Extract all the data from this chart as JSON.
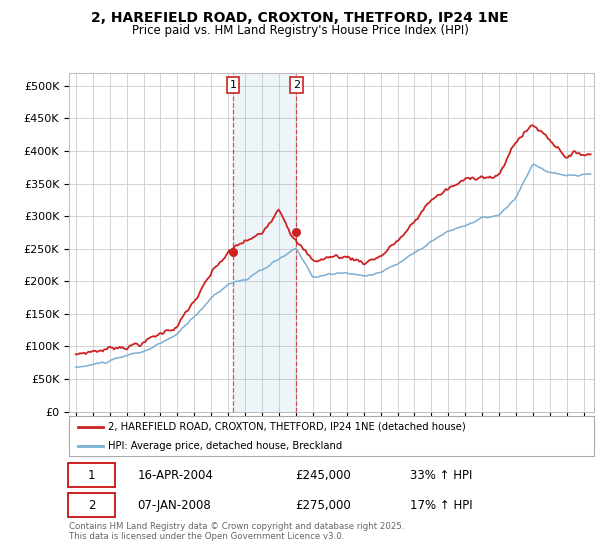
{
  "title": "2, HAREFIELD ROAD, CROXTON, THETFORD, IP24 1NE",
  "subtitle": "Price paid vs. HM Land Registry's House Price Index (HPI)",
  "ylim": [
    0,
    520000
  ],
  "yticks": [
    0,
    50000,
    100000,
    150000,
    200000,
    250000,
    300000,
    350000,
    400000,
    450000,
    500000
  ],
  "ytick_labels": [
    "£0",
    "£50K",
    "£100K",
    "£150K",
    "£200K",
    "£250K",
    "£300K",
    "£350K",
    "£400K",
    "£450K",
    "£500K"
  ],
  "hpi_color": "#7bafd4",
  "price_color": "#cc2222",
  "sale1_date": "16-APR-2004",
  "sale1_price": 245000,
  "sale1_hpi_change": "33% ↑ HPI",
  "sale2_date": "07-JAN-2008",
  "sale2_price": 275000,
  "sale2_hpi_change": "17% ↑ HPI",
  "legend_label1": "2, HAREFIELD ROAD, CROXTON, THETFORD, IP24 1NE (detached house)",
  "legend_label2": "HPI: Average price, detached house, Breckland",
  "footnote": "Contains HM Land Registry data © Crown copyright and database right 2025.\nThis data is licensed under the Open Government Licence v3.0.",
  "background_color": "#ffffff",
  "grid_color": "#cccccc",
  "sale1_x_year": 2004.29,
  "sale2_x_year": 2008.02,
  "xmin": 1994.6,
  "xmax": 2025.6,
  "hpi_base": {
    "1995": 68000,
    "1996": 72000,
    "1997": 77000,
    "1998": 83000,
    "1999": 90000,
    "2000": 100000,
    "2001": 115000,
    "2002": 140000,
    "2003": 170000,
    "2004": 193000,
    "2005": 200000,
    "2006": 212000,
    "2007": 228000,
    "2008": 242000,
    "2009": 200000,
    "2010": 205000,
    "2011": 205000,
    "2012": 200000,
    "2013": 208000,
    "2014": 220000,
    "2015": 238000,
    "2016": 258000,
    "2017": 272000,
    "2018": 282000,
    "2019": 292000,
    "2020": 295000,
    "2021": 320000,
    "2022": 370000,
    "2023": 358000,
    "2024": 350000,
    "2025": 352000
  },
  "prop_base": {
    "1995": 88000,
    "1996": 95000,
    "1997": 100000,
    "1998": 108000,
    "1999": 115000,
    "2000": 127000,
    "2001": 143000,
    "2002": 178000,
    "2003": 215000,
    "2004": 245000,
    "2005": 260000,
    "2006": 268000,
    "2007": 318000,
    "2008": 275000,
    "2009": 240000,
    "2010": 248000,
    "2011": 248000,
    "2012": 242000,
    "2013": 255000,
    "2014": 278000,
    "2015": 303000,
    "2016": 340000,
    "2017": 355000,
    "2018": 365000,
    "2019": 378000,
    "2020": 375000,
    "2021": 430000,
    "2022": 455000,
    "2023": 435000,
    "2024": 415000,
    "2025": 418000
  }
}
